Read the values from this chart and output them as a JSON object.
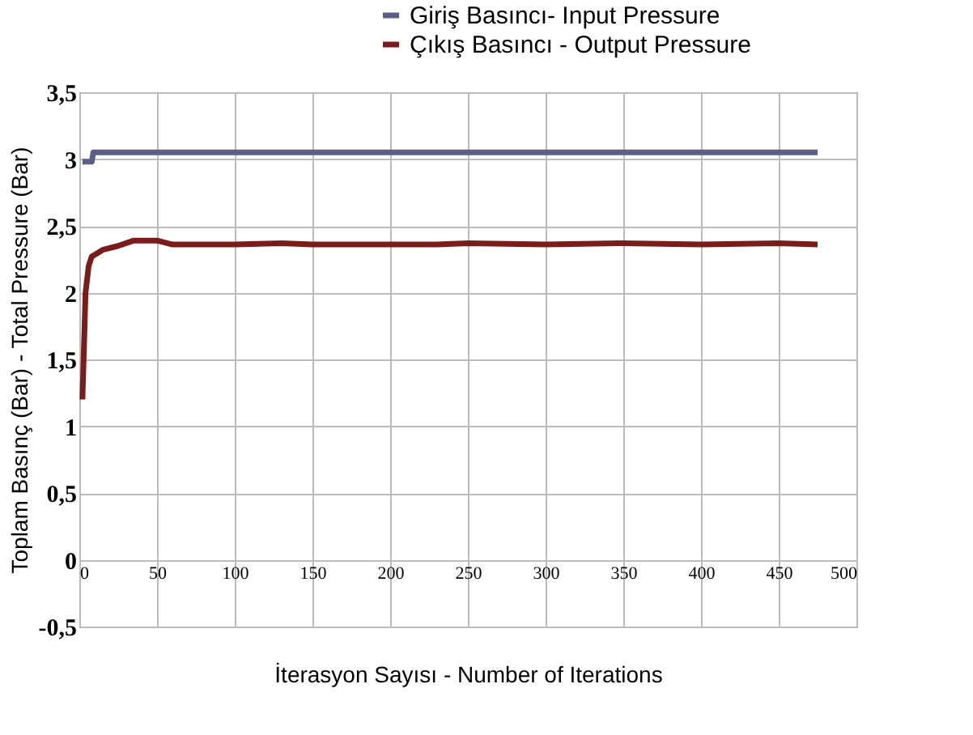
{
  "chart_data": {
    "type": "line",
    "xlabel": "İterasyon Sayısı - Number of Iterations",
    "ylabel": "Toplam Basınç (Bar) - Total Pressure (Bar)",
    "series": [
      {
        "name": "Giriş Basıncı- Input Pressure",
        "color": "#5c6088",
        "x": [
          2,
          8,
          9,
          50,
          100,
          200,
          300,
          400,
          475
        ],
        "values": [
          2.98,
          2.98,
          3.05,
          3.05,
          3.05,
          3.05,
          3.05,
          3.05,
          3.05
        ]
      },
      {
        "name": "Çıkış Basıncı - Output Pressure",
        "color": "#7a1c1c",
        "x": [
          2,
          4,
          6,
          8,
          15,
          25,
          35,
          50,
          60,
          100,
          130,
          150,
          230,
          250,
          300,
          350,
          400,
          450,
          475
        ],
        "values": [
          1.2,
          2.0,
          2.2,
          2.27,
          2.32,
          2.35,
          2.39,
          2.39,
          2.36,
          2.36,
          2.37,
          2.36,
          2.36,
          2.37,
          2.36,
          2.37,
          2.36,
          2.37,
          2.36
        ]
      }
    ],
    "xlim": [
      0,
      500
    ],
    "xticks": [
      0,
      50,
      100,
      150,
      200,
      250,
      300,
      350,
      400,
      450,
      500
    ],
    "ylim": [
      -0.5,
      3.5
    ],
    "yticks": [
      {
        "value": -0.5,
        "label": "-0,5"
      },
      0,
      {
        "value": 0.5,
        "label": "0,5"
      },
      1,
      {
        "value": 1.5,
        "label": "1,5"
      },
      2,
      {
        "value": 2.5,
        "label": "2,5"
      },
      3,
      {
        "value": 3.5,
        "label": "3,5"
      }
    ],
    "grid": true,
    "legend": "top",
    "marker": "none",
    "line_style": "solid"
  }
}
